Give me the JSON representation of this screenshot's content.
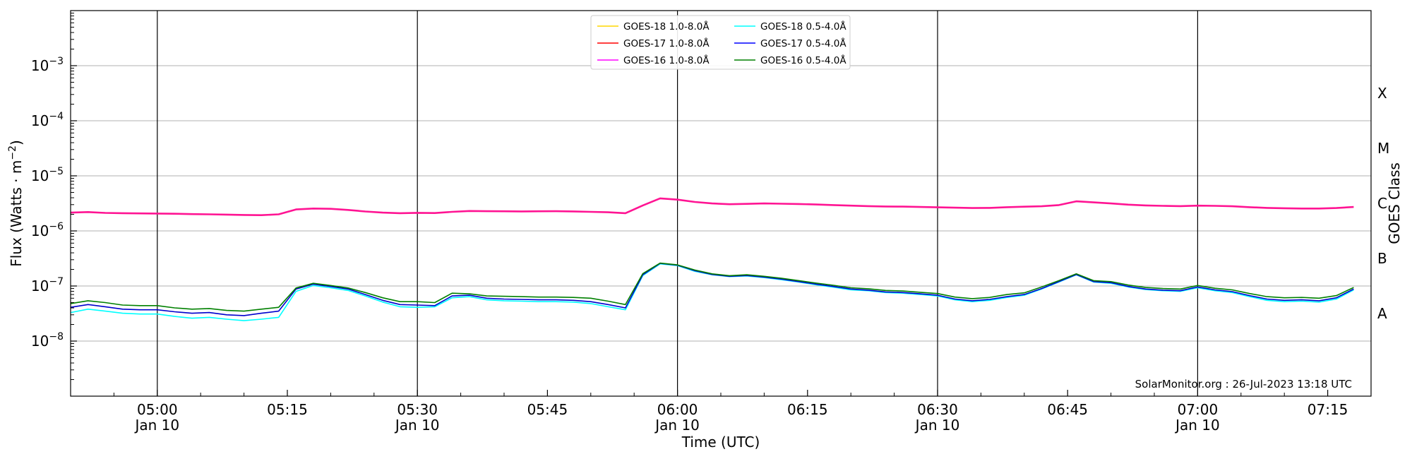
{
  "chart_data": {
    "type": "line",
    "xlabel": "Time (UTC)",
    "ylabel_main": "Flux (Watts · m",
    "ylabel_sup": "−2",
    "ylabel_close": ")",
    "right_axis_label": "GOES Class",
    "y_scale": "log",
    "ylim": [
      1e-09,
      0.01
    ],
    "x_range": [
      "04:50",
      "07:20"
    ],
    "y_ticks": [
      {
        "value": 1e-08,
        "base": "10",
        "exp": "−8"
      },
      {
        "value": 1e-07,
        "base": "10",
        "exp": "−7"
      },
      {
        "value": 1e-06,
        "base": "10",
        "exp": "−6"
      },
      {
        "value": 1e-05,
        "base": "10",
        "exp": "−5"
      },
      {
        "value": 0.0001,
        "base": "10",
        "exp": "−4"
      },
      {
        "value": 0.001,
        "base": "10",
        "exp": "−3"
      }
    ],
    "x_ticks": [
      {
        "time": "05:00",
        "label": "05:00",
        "date": "Jan 10",
        "vline": true
      },
      {
        "time": "05:15",
        "label": "05:15",
        "date": "",
        "vline": false
      },
      {
        "time": "05:30",
        "label": "05:30",
        "date": "Jan 10",
        "vline": true
      },
      {
        "time": "05:45",
        "label": "05:45",
        "date": "",
        "vline": false
      },
      {
        "time": "06:00",
        "label": "06:00",
        "date": "Jan 10",
        "vline": true
      },
      {
        "time": "06:15",
        "label": "06:15",
        "date": "",
        "vline": false
      },
      {
        "time": "06:30",
        "label": "06:30",
        "date": "Jan 10",
        "vline": true
      },
      {
        "time": "06:45",
        "label": "06:45",
        "date": "",
        "vline": false
      },
      {
        "time": "07:00",
        "label": "07:00",
        "date": "Jan 10",
        "vline": true
      },
      {
        "time": "07:15",
        "label": "07:15",
        "date": "",
        "vline": false
      }
    ],
    "goes_classes": [
      {
        "label": "X",
        "value": 0.000316
      },
      {
        "label": "M",
        "value": 3.16e-05
      },
      {
        "label": "C",
        "value": 3.16e-06
      },
      {
        "label": "B",
        "value": 3.16e-07
      },
      {
        "label": "A",
        "value": 3.16e-08
      }
    ],
    "grid": "horizontal at decades",
    "legend": {
      "placement": "top-center",
      "columns": [
        [
          "GOES-18 1.0-8.0Å",
          "GOES-17 1.0-8.0Å",
          "GOES-16 1.0-8.0Å"
        ],
        [
          "GOES-18 0.5-4.0Å",
          "GOES-17 0.5-4.0Å",
          "GOES-16 0.5-4.0Å"
        ]
      ],
      "colors": [
        [
          "#ffd700",
          "#ff0000",
          "#ff00ff"
        ],
        [
          "#00ffff",
          "#0000ff",
          "#008000"
        ]
      ]
    },
    "annotation": "SolarMonitor.org : 26-Jul-2023 13:18 UTC",
    "series": [
      {
        "name": "GOES-16 1.0-8.0Å",
        "color": "#ff1493",
        "x": [
          "04:50",
          "04:52",
          "04:54",
          "04:56",
          "04:58",
          "05:00",
          "05:02",
          "05:04",
          "05:06",
          "05:08",
          "05:10",
          "05:12",
          "05:14",
          "05:16",
          "05:18",
          "05:20",
          "05:22",
          "05:24",
          "05:26",
          "05:28",
          "05:30",
          "05:32",
          "05:34",
          "05:36",
          "05:38",
          "05:40",
          "05:42",
          "05:44",
          "05:46",
          "05:48",
          "05:50",
          "05:52",
          "05:54",
          "05:56",
          "05:58",
          "06:00",
          "06:02",
          "06:04",
          "06:06",
          "06:08",
          "06:10",
          "06:12",
          "06:14",
          "06:16",
          "06:18",
          "06:20",
          "06:22",
          "06:24",
          "06:26",
          "06:28",
          "06:30",
          "06:32",
          "06:34",
          "06:36",
          "06:38",
          "06:40",
          "06:42",
          "06:44",
          "06:46",
          "06:48",
          "06:50",
          "06:52",
          "06:54",
          "06:56",
          "06:58",
          "07:00",
          "07:02",
          "07:04",
          "07:06",
          "07:08",
          "07:10",
          "07:12",
          "07:14",
          "07:16",
          "07:18"
        ],
        "values": [
          2.15e-06,
          2.2e-06,
          2.12e-06,
          2.1e-06,
          2.08e-06,
          2.07e-06,
          2.05e-06,
          2.02e-06,
          2e-06,
          1.98e-06,
          1.95e-06,
          1.93e-06,
          2e-06,
          2.45e-06,
          2.55e-06,
          2.52e-06,
          2.4e-06,
          2.25e-06,
          2.15e-06,
          2.1e-06,
          2.13e-06,
          2.11e-06,
          2.22e-06,
          2.3e-06,
          2.28e-06,
          2.27e-06,
          2.26e-06,
          2.27e-06,
          2.28e-06,
          2.26e-06,
          2.22e-06,
          2.18e-06,
          2.1e-06,
          2.9e-06,
          3.9e-06,
          3.7e-06,
          3.35e-06,
          3.15e-06,
          3.05e-06,
          3.1e-06,
          3.15e-06,
          3.12e-06,
          3.08e-06,
          3.02e-06,
          2.95e-06,
          2.88e-06,
          2.82e-06,
          2.78e-06,
          2.76e-06,
          2.72e-06,
          2.68e-06,
          2.64e-06,
          2.6e-06,
          2.62e-06,
          2.7e-06,
          2.75e-06,
          2.8e-06,
          2.95e-06,
          3.45e-06,
          3.3e-06,
          3.15e-06,
          3e-06,
          2.9e-06,
          2.85e-06,
          2.82e-06,
          2.88e-06,
          2.85e-06,
          2.8e-06,
          2.7e-06,
          2.62e-06,
          2.58e-06,
          2.55e-06,
          2.55e-06,
          2.6e-06,
          2.72e-06
        ]
      },
      {
        "name": "GOES-18 0.5-4.0Å",
        "color": "#00ffff",
        "x": [
          "04:50",
          "04:52",
          "04:54",
          "04:56",
          "04:58",
          "05:00",
          "05:02",
          "05:04",
          "05:06",
          "05:08",
          "05:10",
          "05:12",
          "05:14",
          "05:16",
          "05:18",
          "05:20",
          "05:22",
          "05:24",
          "05:26",
          "05:28",
          "05:30",
          "05:32",
          "05:34",
          "05:36",
          "05:38",
          "05:40",
          "05:42",
          "05:44",
          "05:46",
          "05:48",
          "05:50",
          "05:52",
          "05:54",
          "05:56",
          "05:58",
          "06:00",
          "06:02",
          "06:04",
          "06:06",
          "06:08",
          "06:10",
          "06:12",
          "06:14",
          "06:16",
          "06:18",
          "06:20",
          "06:22",
          "06:24",
          "06:26",
          "06:28",
          "06:30",
          "06:32",
          "06:34",
          "06:36",
          "06:38",
          "06:40",
          "06:42",
          "06:44",
          "06:46",
          "06:48",
          "06:50",
          "06:52",
          "06:54",
          "06:56",
          "06:58",
          "07:00",
          "07:02",
          "07:04",
          "07:06",
          "07:08",
          "07:10",
          "07:12",
          "07:14",
          "07:16",
          "07:18"
        ],
        "values": [
          3.3e-08,
          3.8e-08,
          3.5e-08,
          3.2e-08,
          3.1e-08,
          3.1e-08,
          2.8e-08,
          2.6e-08,
          2.7e-08,
          2.5e-08,
          2.35e-08,
          2.5e-08,
          2.7e-08,
          8e-08,
          1.02e-07,
          9.3e-08,
          8.3e-08,
          6.6e-08,
          5.1e-08,
          4.2e-08,
          4.1e-08,
          4.2e-08,
          6.1e-08,
          6.4e-08,
          5.6e-08,
          5.4e-08,
          5.3e-08,
          5.2e-08,
          5.2e-08,
          5.1e-08,
          4.8e-08,
          4.2e-08,
          3.7e-08,
          1.55e-07,
          2.52e-07,
          2.35e-07,
          1.85e-07,
          1.6e-07,
          1.48e-07,
          1.52e-07,
          1.42e-07,
          1.3e-07,
          1.18e-07,
          1.05e-07,
          9.5e-08,
          8.5e-08,
          8.2e-08,
          7.6e-08,
          7.4e-08,
          7e-08,
          6.6e-08,
          5.6e-08,
          5.2e-08,
          5.5e-08,
          6.2e-08,
          6.8e-08,
          8.8e-08,
          1.18e-07,
          1.6e-07,
          1.18e-07,
          1.12e-07,
          9.6e-08,
          8.6e-08,
          8.2e-08,
          8e-08,
          9.3e-08,
          8.2e-08,
          7.6e-08,
          6.4e-08,
          5.5e-08,
          5.2e-08,
          5.3e-08,
          5.1e-08,
          5.8e-08,
          8.5e-08
        ]
      },
      {
        "name": "GOES-17 0.5-4.0Å",
        "color": "#0000cd",
        "x": [
          "04:50",
          "04:52",
          "04:54",
          "04:56",
          "04:58",
          "05:00",
          "05:02",
          "05:04",
          "05:06",
          "05:08",
          "05:10",
          "05:12",
          "05:14",
          "05:16",
          "05:18",
          "05:20",
          "05:22",
          "05:24",
          "05:26",
          "05:28",
          "05:30",
          "05:32",
          "05:34",
          "05:36",
          "05:38",
          "05:40",
          "05:42",
          "05:44",
          "05:46",
          "05:48",
          "05:50",
          "05:52",
          "05:54",
          "05:56",
          "05:58",
          "06:00",
          "06:02",
          "06:04",
          "06:06",
          "06:08",
          "06:10",
          "06:12",
          "06:14",
          "06:16",
          "06:18",
          "06:20",
          "06:22",
          "06:24",
          "06:26",
          "06:28",
          "06:30",
          "06:32",
          "06:34",
          "06:36",
          "06:38",
          "06:40",
          "06:42",
          "06:44",
          "06:46",
          "06:48",
          "06:50",
          "06:52",
          "06:54",
          "06:56",
          "06:58",
          "07:00",
          "07:02",
          "07:04",
          "07:06",
          "07:08",
          "07:10",
          "07:12",
          "07:14",
          "07:16",
          "07:18"
        ],
        "values": [
          4.1e-08,
          4.6e-08,
          4.2e-08,
          3.8e-08,
          3.7e-08,
          3.7e-08,
          3.4e-08,
          3.2e-08,
          3.3e-08,
          3e-08,
          2.9e-08,
          3.2e-08,
          3.5e-08,
          8.8e-08,
          1.08e-07,
          9.8e-08,
          8.8e-08,
          7e-08,
          5.5e-08,
          4.6e-08,
          4.5e-08,
          4.4e-08,
          6.6e-08,
          6.8e-08,
          6e-08,
          5.8e-08,
          5.7e-08,
          5.6e-08,
          5.6e-08,
          5.5e-08,
          5.2e-08,
          4.6e-08,
          4e-08,
          1.6e-07,
          2.58e-07,
          2.38e-07,
          1.9e-07,
          1.62e-07,
          1.5e-07,
          1.55e-07,
          1.45e-07,
          1.33e-07,
          1.2e-07,
          1.08e-07,
          9.8e-08,
          8.8e-08,
          8.4e-08,
          7.8e-08,
          7.6e-08,
          7.2e-08,
          6.8e-08,
          5.8e-08,
          5.4e-08,
          5.7e-08,
          6.4e-08,
          7e-08,
          9e-08,
          1.2e-07,
          1.62e-07,
          1.2e-07,
          1.15e-07,
          9.8e-08,
          8.8e-08,
          8.4e-08,
          8.2e-08,
          9.6e-08,
          8.5e-08,
          7.9e-08,
          6.7e-08,
          5.8e-08,
          5.5e-08,
          5.6e-08,
          5.4e-08,
          6.1e-08,
          8.8e-08
        ]
      },
      {
        "name": "GOES-16 0.5-4.0Å",
        "color": "#008000",
        "x": [
          "04:50",
          "04:52",
          "04:54",
          "04:56",
          "04:58",
          "05:00",
          "05:02",
          "05:04",
          "05:06",
          "05:08",
          "05:10",
          "05:12",
          "05:14",
          "05:16",
          "05:18",
          "05:20",
          "05:22",
          "05:24",
          "05:26",
          "05:28",
          "05:30",
          "05:32",
          "05:34",
          "05:36",
          "05:38",
          "05:40",
          "05:42",
          "05:44",
          "05:46",
          "05:48",
          "05:50",
          "05:52",
          "05:54",
          "05:56",
          "05:58",
          "06:00",
          "06:02",
          "06:04",
          "06:06",
          "06:08",
          "06:10",
          "06:12",
          "06:14",
          "06:16",
          "06:18",
          "06:20",
          "06:22",
          "06:24",
          "06:26",
          "06:28",
          "06:30",
          "06:32",
          "06:34",
          "06:36",
          "06:38",
          "06:40",
          "06:42",
          "06:44",
          "06:46",
          "06:48",
          "06:50",
          "06:52",
          "06:54",
          "06:56",
          "06:58",
          "07:00",
          "07:02",
          "07:04",
          "07:06",
          "07:08",
          "07:10",
          "07:12",
          "07:14",
          "07:16",
          "07:18"
        ],
        "values": [
          4.8e-08,
          5.4e-08,
          5e-08,
          4.5e-08,
          4.4e-08,
          4.4e-08,
          4e-08,
          3.8e-08,
          3.9e-08,
          3.6e-08,
          3.5e-08,
          3.8e-08,
          4.1e-08,
          9.2e-08,
          1.12e-07,
          1.02e-07,
          9.2e-08,
          7.6e-08,
          6.1e-08,
          5.2e-08,
          5.2e-08,
          5e-08,
          7.4e-08,
          7.2e-08,
          6.6e-08,
          6.5e-08,
          6.4e-08,
          6.3e-08,
          6.3e-08,
          6.2e-08,
          6e-08,
          5.3e-08,
          4.6e-08,
          1.68e-07,
          2.6e-07,
          2.42e-07,
          1.95e-07,
          1.66e-07,
          1.54e-07,
          1.6e-07,
          1.5e-07,
          1.38e-07,
          1.25e-07,
          1.13e-07,
          1.03e-07,
          9.3e-08,
          8.9e-08,
          8.3e-08,
          8.1e-08,
          7.7e-08,
          7.3e-08,
          6.3e-08,
          5.9e-08,
          6.2e-08,
          7e-08,
          7.5e-08,
          9.6e-08,
          1.25e-07,
          1.66e-07,
          1.25e-07,
          1.2e-07,
          1.04e-07,
          9.4e-08,
          9e-08,
          8.8e-08,
          1.02e-07,
          9.1e-08,
          8.5e-08,
          7.3e-08,
          6.4e-08,
          6.1e-08,
          6.2e-08,
          6e-08,
          6.7e-08,
          9.4e-08
        ]
      }
    ]
  }
}
